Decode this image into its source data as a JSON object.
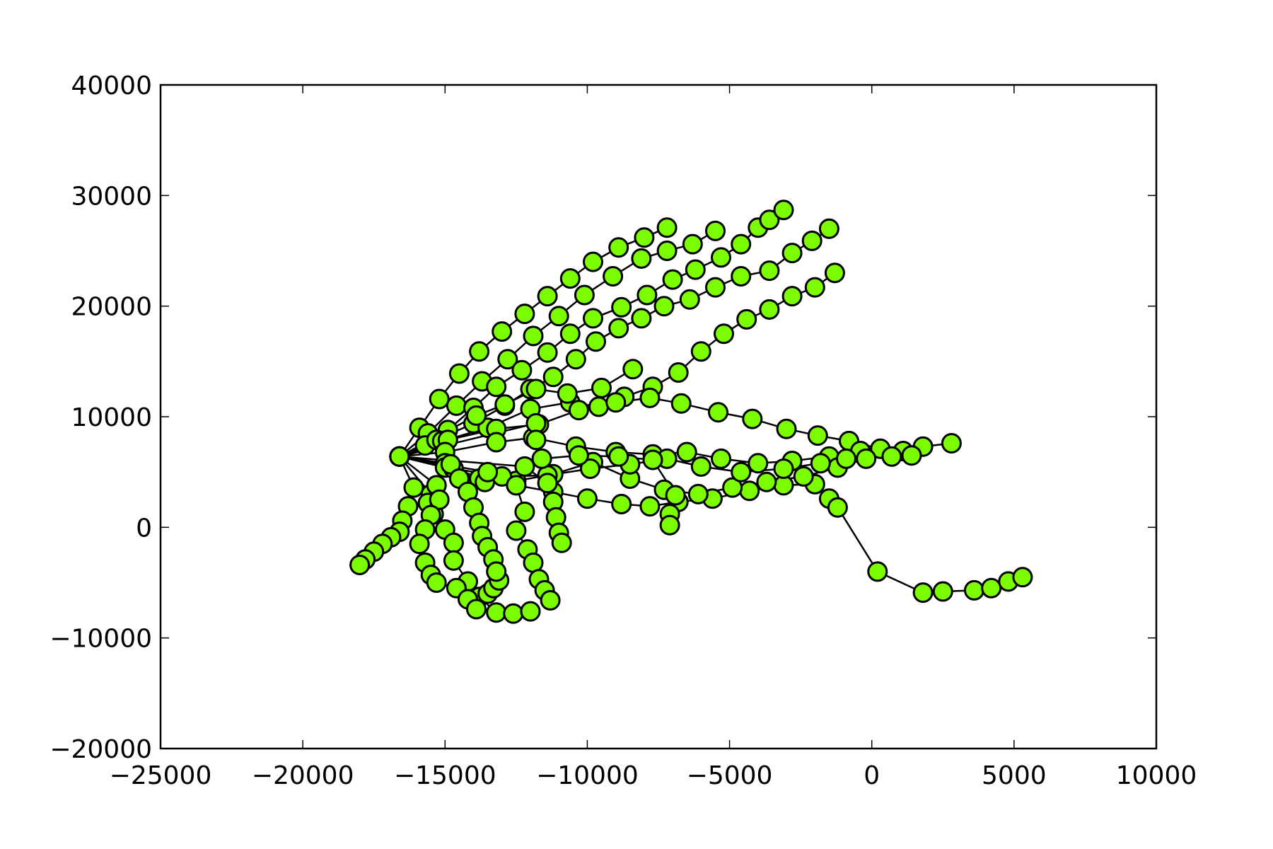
{
  "chart_data": {
    "type": "line",
    "title": "",
    "xlabel": "",
    "ylabel": "",
    "xlim": [
      -25000,
      10000
    ],
    "ylim": [
      -20000,
      40000
    ],
    "xticks": [
      -25000,
      -20000,
      -15000,
      -10000,
      -5000,
      0,
      5000,
      10000
    ],
    "yticks": [
      -20000,
      -10000,
      0,
      10000,
      20000,
      30000,
      40000
    ],
    "xtick_labels": [
      "−25000",
      "−20000",
      "−15000",
      "−10000",
      "−5000",
      "0",
      "5000",
      "10000"
    ],
    "ytick_labels": [
      "−20000",
      "−10000",
      "0",
      "10000",
      "20000",
      "30000",
      "40000"
    ],
    "grid": false,
    "legend": "none",
    "marker": "circle",
    "marker_color": "#7cfc00",
    "marker_edge_color": "#000000",
    "line_color": "#000000",
    "series": [
      {
        "values": [
          [
            -16600,
            6400
          ],
          [
            -15900,
            9000
          ],
          [
            -15200,
            11600
          ],
          [
            -14500,
            13900
          ],
          [
            -13800,
            15900
          ],
          [
            -13000,
            17700
          ],
          [
            -12200,
            19300
          ],
          [
            -11400,
            20900
          ],
          [
            -10600,
            22500
          ],
          [
            -9800,
            24000
          ],
          [
            -8900,
            25300
          ],
          [
            -8000,
            26200
          ],
          [
            -7200,
            27100
          ]
        ]
      },
      {
        "values": [
          [
            -16600,
            6400
          ],
          [
            -15600,
            8500
          ],
          [
            -14600,
            11000
          ],
          [
            -13700,
            13200
          ],
          [
            -12800,
            15200
          ],
          [
            -11900,
            17300
          ],
          [
            -11000,
            19100
          ],
          [
            -10100,
            21000
          ],
          [
            -9100,
            22700
          ],
          [
            -8100,
            24300
          ],
          [
            -7200,
            25000
          ],
          [
            -6300,
            25600
          ],
          [
            -5500,
            26800
          ]
        ]
      },
      {
        "values": [
          [
            -16600,
            6400
          ],
          [
            -15700,
            7400
          ],
          [
            -14900,
            8800
          ],
          [
            -14000,
            10800
          ],
          [
            -13200,
            12700
          ],
          [
            -12300,
            14200
          ],
          [
            -11400,
            15800
          ],
          [
            -10600,
            17500
          ],
          [
            -9800,
            18900
          ],
          [
            -8800,
            19900
          ],
          [
            -7900,
            21000
          ],
          [
            -7000,
            22400
          ],
          [
            -6200,
            23300
          ],
          [
            -5300,
            24400
          ],
          [
            -4600,
            25600
          ],
          [
            -4000,
            27100
          ],
          [
            -3600,
            27800
          ],
          [
            -3100,
            28700
          ]
        ]
      },
      {
        "values": [
          [
            -16600,
            6400
          ],
          [
            -15300,
            7900
          ],
          [
            -14000,
            9400
          ],
          [
            -12900,
            11000
          ],
          [
            -12000,
            12500
          ],
          [
            -11200,
            13600
          ],
          [
            -10400,
            15200
          ],
          [
            -9700,
            16800
          ],
          [
            -8900,
            18000
          ],
          [
            -8100,
            18900
          ],
          [
            -7300,
            20000
          ],
          [
            -6400,
            20600
          ],
          [
            -5500,
            21700
          ],
          [
            -4600,
            22700
          ],
          [
            -3600,
            23200
          ],
          [
            -2800,
            24800
          ],
          [
            -2100,
            25900
          ],
          [
            -1500,
            27000
          ]
        ]
      },
      {
        "values": [
          [
            -16600,
            6400
          ],
          [
            -15100,
            7800
          ],
          [
            -13500,
            9000
          ],
          [
            -12000,
            10700
          ],
          [
            -10600,
            11300
          ],
          [
            -9600,
            10900
          ],
          [
            -8700,
            11800
          ],
          [
            -7700,
            12700
          ],
          [
            -6800,
            14000
          ],
          [
            -6000,
            15900
          ],
          [
            -5200,
            17500
          ],
          [
            -4400,
            18800
          ],
          [
            -3600,
            19700
          ],
          [
            -2800,
            20900
          ],
          [
            -2000,
            21700
          ],
          [
            -1300,
            23000
          ]
        ]
      },
      {
        "values": [
          [
            -16600,
            6400
          ],
          [
            -14900,
            7900
          ],
          [
            -13200,
            8900
          ],
          [
            -11700,
            9300
          ],
          [
            -10300,
            10600
          ],
          [
            -9000,
            11300
          ],
          [
            -7800,
            11700
          ],
          [
            -6700,
            11200
          ],
          [
            -5400,
            10400
          ],
          [
            -4200,
            9800
          ],
          [
            -3000,
            8900
          ],
          [
            -1900,
            8300
          ],
          [
            -800,
            7800
          ],
          [
            300,
            7100
          ],
          [
            1100,
            6900
          ],
          [
            1800,
            7300
          ],
          [
            2800,
            7600
          ]
        ]
      },
      {
        "values": [
          [
            -16600,
            6400
          ],
          [
            -15000,
            6800
          ],
          [
            -13200,
            7700
          ],
          [
            -11900,
            8100
          ],
          [
            -10400,
            7300
          ],
          [
            -9000,
            6800
          ],
          [
            -7700,
            6600
          ],
          [
            -6500,
            6800
          ],
          [
            -5300,
            6200
          ],
          [
            -4000,
            5800
          ],
          [
            -2800,
            6000
          ],
          [
            -1500,
            6400
          ],
          [
            -400,
            6900
          ],
          [
            700,
            6400
          ],
          [
            1400,
            6500
          ]
        ]
      },
      {
        "values": [
          [
            -16600,
            6400
          ],
          [
            -15000,
            5800
          ],
          [
            -13800,
            4400
          ],
          [
            -12500,
            3800
          ],
          [
            -11200,
            3200
          ],
          [
            -10000,
            2600
          ],
          [
            -8800,
            2100
          ],
          [
            -7800,
            1900
          ],
          [
            -6800,
            2300
          ],
          [
            -5600,
            2600
          ],
          [
            -4300,
            3300
          ],
          [
            -3100,
            3800
          ],
          [
            -2000,
            3900
          ],
          [
            -1500,
            2600
          ],
          [
            -1200,
            1800
          ],
          [
            200,
            -4000
          ],
          [
            1800,
            -5900
          ],
          [
            2500,
            -5800
          ],
          [
            3600,
            -5700
          ],
          [
            4200,
            -5500
          ],
          [
            4800,
            -4900
          ],
          [
            5300,
            -4500
          ]
        ]
      },
      {
        "values": [
          [
            -16600,
            6400
          ],
          [
            -15000,
            5400
          ],
          [
            -13600,
            4100
          ],
          [
            -12500,
            4200
          ],
          [
            -11200,
            4800
          ],
          [
            -9800,
            5900
          ],
          [
            -8500,
            4400
          ],
          [
            -7300,
            3400
          ],
          [
            -6100,
            3000
          ],
          [
            -4900,
            3600
          ],
          [
            -3700,
            4100
          ],
          [
            -2400,
            4600
          ],
          [
            -1200,
            5400
          ],
          [
            -200,
            6200
          ]
        ]
      },
      {
        "values": [
          [
            -16600,
            6400
          ],
          [
            -14700,
            5300
          ],
          [
            -13000,
            4600
          ],
          [
            -11400,
            4700
          ],
          [
            -9900,
            5300
          ],
          [
            -8500,
            5700
          ],
          [
            -7200,
            6200
          ],
          [
            -6000,
            5500
          ],
          [
            -4600,
            5000
          ],
          [
            -3100,
            5300
          ],
          [
            -1800,
            5800
          ],
          [
            -900,
            6200
          ]
        ]
      },
      {
        "values": [
          [
            -16600,
            6400
          ],
          [
            -15500,
            3000
          ],
          [
            -15600,
            2200
          ],
          [
            -15400,
            1200
          ],
          [
            -15000,
            -200
          ],
          [
            -14700,
            -1400
          ],
          [
            -14700,
            -3000
          ],
          [
            -14200,
            -4900
          ],
          [
            -13800,
            -6300
          ],
          [
            -13200,
            -7700
          ],
          [
            -12600,
            -7800
          ],
          [
            -12000,
            -7600
          ]
        ]
      },
      {
        "values": [
          [
            -16600,
            6400
          ],
          [
            -16100,
            3600
          ],
          [
            -16300,
            1900
          ],
          [
            -16500,
            600
          ],
          [
            -16600,
            -400
          ],
          [
            -16900,
            -900
          ],
          [
            -17200,
            -1500
          ],
          [
            -17500,
            -2200
          ],
          [
            -17800,
            -2900
          ],
          [
            -18000,
            -3400
          ]
        ]
      },
      {
        "values": [
          [
            -16600,
            6400
          ],
          [
            -15300,
            3800
          ],
          [
            -15200,
            2500
          ],
          [
            -15500,
            1100
          ],
          [
            -15700,
            -200
          ],
          [
            -15900,
            -1500
          ],
          [
            -15700,
            -3200
          ],
          [
            -15500,
            -4300
          ],
          [
            -15300,
            -5000
          ],
          [
            -14600,
            -5500
          ],
          [
            -14200,
            -6500
          ],
          [
            -13900,
            -7400
          ],
          [
            -13500,
            -6000
          ],
          [
            -13300,
            -5500
          ],
          [
            -13100,
            -4800
          ]
        ]
      },
      {
        "values": [
          [
            -16600,
            6400
          ],
          [
            -14800,
            5700
          ],
          [
            -14500,
            4400
          ],
          [
            -14200,
            3200
          ],
          [
            -14000,
            1800
          ],
          [
            -13800,
            400
          ],
          [
            -13700,
            -800
          ],
          [
            -13500,
            -1800
          ],
          [
            -13300,
            -2900
          ],
          [
            -13200,
            -4000
          ]
        ]
      },
      {
        "values": [
          [
            -16600,
            6400
          ],
          [
            -13500,
            5000
          ],
          [
            -12500,
            3800
          ],
          [
            -12200,
            1400
          ],
          [
            -12500,
            -300
          ],
          [
            -12100,
            -2000
          ],
          [
            -11900,
            -3200
          ],
          [
            -11700,
            -4700
          ],
          [
            -11500,
            -5700
          ],
          [
            -11300,
            -6600
          ]
        ]
      },
      {
        "values": [
          [
            -16600,
            6400
          ],
          [
            -12200,
            5500
          ],
          [
            -11400,
            4000
          ],
          [
            -11200,
            2300
          ],
          [
            -11100,
            900
          ],
          [
            -11000,
            -500
          ],
          [
            -10900,
            -1400
          ]
        ]
      },
      {
        "values": [
          [
            -16600,
            6400
          ],
          [
            -11800,
            9400
          ],
          [
            -11800,
            7900
          ],
          [
            -11600,
            6200
          ],
          [
            -10300,
            6500
          ],
          [
            -8900,
            6400
          ],
          [
            -7700,
            6100
          ],
          [
            -6900,
            2900
          ],
          [
            -7100,
            1200
          ],
          [
            -7100,
            200
          ]
        ]
      },
      {
        "values": [
          [
            -16600,
            6400
          ],
          [
            -13900,
            10100
          ],
          [
            -12900,
            11100
          ],
          [
            -11800,
            12500
          ],
          [
            -10700,
            12100
          ],
          [
            -9500,
            12600
          ],
          [
            -8400,
            14300
          ]
        ]
      }
    ]
  }
}
